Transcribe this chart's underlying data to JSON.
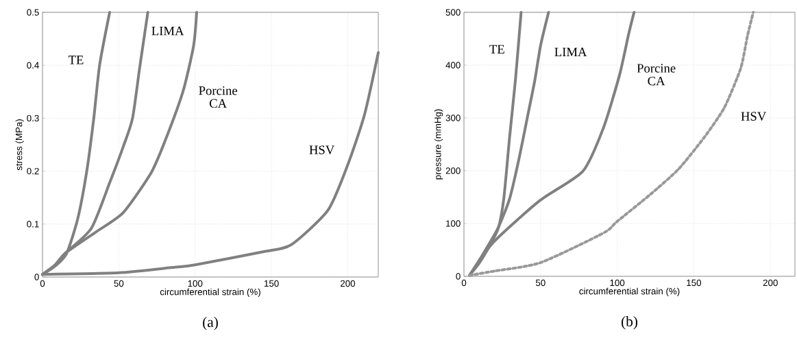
{
  "chart_data": [
    {
      "type": "line",
      "xlabel": "circumferential strain (%)",
      "ylabel": "stress (MPa)",
      "xlim": [
        0,
        220
      ],
      "ylim": [
        0,
        0.5
      ],
      "xticks": [
        0,
        50,
        100,
        150,
        200
      ],
      "yticks": [
        0,
        0.1,
        0.2,
        0.3,
        0.4,
        0.5
      ],
      "grid": true,
      "annotations": [
        "(a)"
      ],
      "series": [
        {
          "name": "TE",
          "color": "#808080",
          "line_style": "solid",
          "x": [
            0,
            8,
            15.7,
            23,
            29,
            33.6,
            37.4,
            44
          ],
          "values": [
            0.005,
            0.02,
            0.044,
            0.109,
            0.2,
            0.3,
            0.4,
            0.5
          ]
        },
        {
          "name": "LIMA",
          "color": "#808080",
          "line_style": "solid",
          "x": [
            0,
            8,
            15,
            32,
            44,
            53,
            59,
            63.6,
            69
          ],
          "values": [
            0.005,
            0.022,
            0.045,
            0.092,
            0.178,
            0.247,
            0.3,
            0.394,
            0.5
          ]
        },
        {
          "name": "Porcine CA",
          "color": "#808080",
          "line_style": "solid",
          "x": [
            0,
            8,
            15,
            35,
            53,
            71,
            80,
            92,
            99,
            101
          ],
          "values": [
            0.005,
            0.022,
            0.045,
            0.085,
            0.122,
            0.196,
            0.255,
            0.35,
            0.437,
            0.5
          ]
        },
        {
          "name": "HSV",
          "color": "#808080",
          "line_style": "solid",
          "x": [
            0,
            50,
            85,
            100,
            145,
            163,
            187,
            200,
            211,
            220
          ],
          "values": [
            0.005,
            0.008,
            0.018,
            0.023,
            0.048,
            0.061,
            0.126,
            0.212,
            0.307,
            0.424
          ]
        }
      ]
    },
    {
      "type": "line",
      "xlabel": "circumferential strain (%)",
      "ylabel": "pressure (mmHg)",
      "xlim": [
        0,
        216
      ],
      "ylim": [
        0,
        500
      ],
      "xticks": [
        0,
        50,
        100,
        150,
        200
      ],
      "yticks": [
        0,
        100,
        200,
        300,
        400,
        500
      ],
      "grid": true,
      "annotations": [
        "(b)"
      ],
      "series": [
        {
          "name": "TE",
          "color": "#808080",
          "line_style": "solid",
          "x": [
            3.7,
            10,
            16.4,
            22.4,
            26,
            29.8,
            33.6,
            37.3
          ],
          "values": [
            2,
            25,
            56,
            91,
            147,
            264,
            372,
            500
          ]
        },
        {
          "name": "LIMA",
          "color": "#808080",
          "line_style": "solid",
          "x": [
            3.7,
            12,
            22,
            29.8,
            35.8,
            41.8,
            46.3,
            50,
            55.2
          ],
          "values": [
            2,
            40,
            90,
            147,
            221,
            307,
            372,
            437,
            500
          ]
        },
        {
          "name": "Porcine CA",
          "color": "#808080",
          "line_style": "solid",
          "x": [
            3.7,
            19.4,
            49.3,
            77.6,
            91,
            101.5,
            107.5,
            111
          ],
          "values": [
            2,
            65,
            143,
            199,
            281,
            381,
            459,
            500
          ]
        },
        {
          "name": "HSV",
          "color": "#999999",
          "line_style": "dotted",
          "x": [
            3.7,
            20,
            50,
            91,
            100,
            122,
            140,
            157,
            170,
            180.6,
            185,
            188.8
          ],
          "values": [
            2,
            10,
            26,
            82,
            104,
            156,
            203,
            264,
            320,
            394,
            455,
            500
          ]
        }
      ]
    }
  ]
}
